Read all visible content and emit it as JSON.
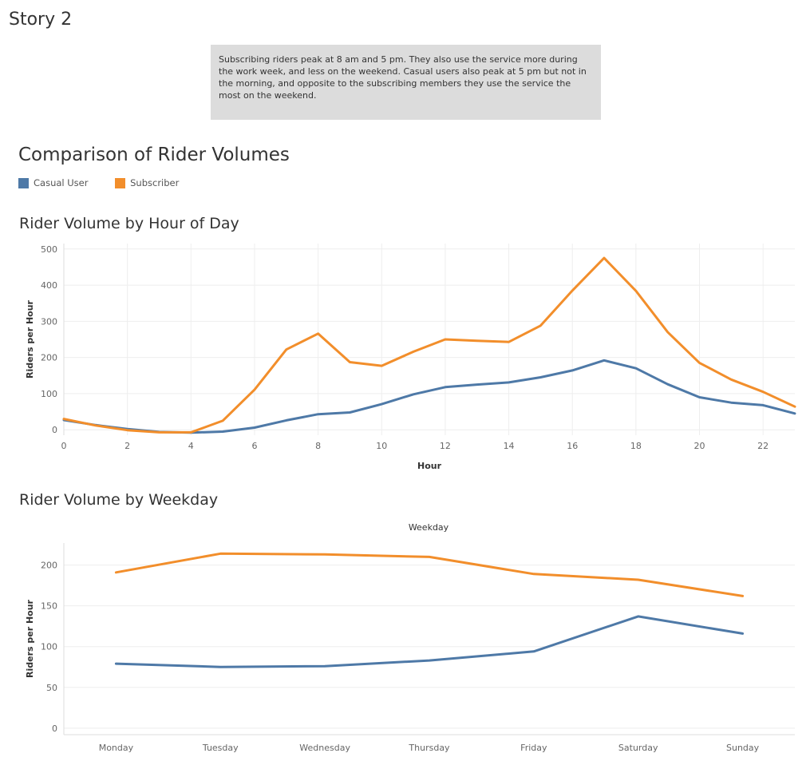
{
  "story": {
    "title": "Story 2"
  },
  "caption": {
    "text": "Subscribing riders peak at 8 am and 5 pm. They also use the service more during the work week, and less on the weekend. Casual users also peak at 5 pm but not in the morning, and opposite to the subscribing members they use the service the most on the weekend."
  },
  "dashboard": {
    "title": "Comparison of Rider Volumes"
  },
  "legend": {
    "items": [
      {
        "label": "Casual User",
        "color": "#4e79a7"
      },
      {
        "label": "Subscriber",
        "color": "#f28e2b"
      }
    ]
  },
  "chart_data": [
    {
      "type": "line",
      "title": "Rider Volume by Hour of Day",
      "xlabel": "Hour",
      "ylabel": "Riders per Hour",
      "xlim": [
        0,
        23
      ],
      "ylim": [
        -15,
        515
      ],
      "x_ticks": [
        0,
        2,
        4,
        6,
        8,
        10,
        12,
        14,
        16,
        18,
        20,
        22
      ],
      "y_ticks": [
        0,
        100,
        200,
        300,
        400,
        500
      ],
      "grid": true,
      "x": [
        0,
        1,
        2,
        3,
        4,
        5,
        6,
        7,
        8,
        9,
        10,
        11,
        12,
        13,
        14,
        15,
        16,
        17,
        18,
        19,
        20,
        21,
        22,
        23
      ],
      "series": [
        {
          "name": "Casual User",
          "color": "#4e79a7",
          "values": [
            27,
            13,
            2,
            -6,
            -8,
            -5,
            6,
            26,
            43,
            48,
            71,
            98,
            118,
            125,
            131,
            145,
            164,
            192,
            170,
            126,
            90,
            75,
            68,
            45
          ]
        },
        {
          "name": "Subscriber",
          "color": "#f28e2b",
          "values": [
            30,
            12,
            -1,
            -7,
            -7,
            25,
            111,
            222,
            266,
            187,
            177,
            216,
            250,
            246,
            243,
            288,
            385,
            475,
            384,
            270,
            185,
            139,
            105,
            64
          ]
        }
      ]
    },
    {
      "type": "line",
      "title": "Rider Volume by Weekday",
      "xlabel": "Weekday",
      "ylabel": "Riders per Hour",
      "ylim": [
        -8,
        227
      ],
      "y_ticks": [
        0,
        50,
        100,
        150,
        200
      ],
      "grid": true,
      "categories": [
        "Monday",
        "Tuesday",
        "Wednesday",
        "Thursday",
        "Friday",
        "Saturday",
        "Sunday"
      ],
      "series": [
        {
          "name": "Casual User",
          "color": "#4e79a7",
          "values": [
            79,
            75,
            76,
            83,
            94,
            137,
            116
          ]
        },
        {
          "name": "Subscriber",
          "color": "#f28e2b",
          "values": [
            191,
            214,
            213,
            210,
            189,
            182,
            162
          ]
        }
      ]
    }
  ]
}
